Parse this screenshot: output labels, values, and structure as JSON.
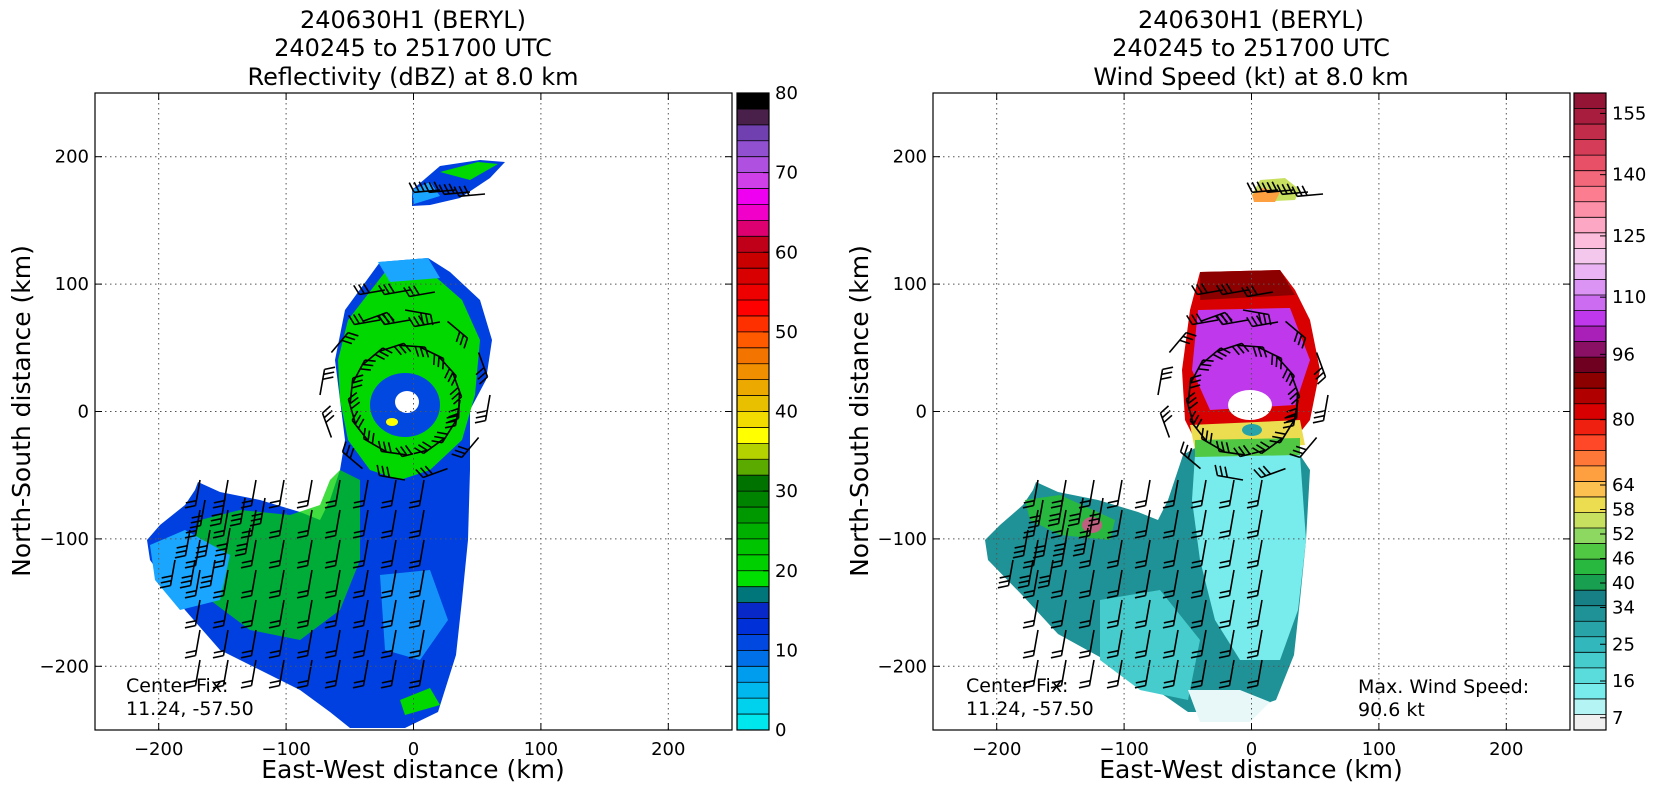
{
  "chart_data": [
    {
      "type": "heatmap",
      "title_lines": [
        "240630H1 (BERYL)",
        "240245 to 251700 UTC",
        "Reflectivity (dBZ) at 8.0 km"
      ],
      "xlabel": "East-West distance (km)",
      "ylabel": "North-South distance (km)",
      "xlim": [
        -250,
        250
      ],
      "ylim": [
        -250,
        250
      ],
      "xticks": [
        -200,
        -100,
        0,
        100,
        200
      ],
      "yticks": [
        -200,
        -100,
        0,
        100,
        200
      ],
      "xtick_labels": [
        "−200",
        "−100",
        "0",
        "100",
        "200"
      ],
      "ytick_labels": [
        "−200",
        "−100",
        "0",
        "100",
        "200"
      ],
      "grid": true,
      "center_fix_label": "Center Fix:",
      "center_fix_value": "11.24, -57.50",
      "colorbar": {
        "min": 0,
        "max": 80,
        "ticks": [
          0,
          10,
          20,
          30,
          40,
          50,
          60,
          70,
          80
        ],
        "tick_labels": [
          "0",
          "10",
          "20",
          "30",
          "40",
          "50",
          "60",
          "70",
          "80"
        ],
        "colors": [
          "#00e8ee",
          "#00d2ee",
          "#00b8ee",
          "#009cee",
          "#0070e8",
          "#0048e0",
          "#0030d8",
          "#0828c8",
          "#00767a",
          "#00e000",
          "#00d000",
          "#00c400",
          "#00b000",
          "#009800",
          "#008400",
          "#007200",
          "#5aaa00",
          "#b4d200",
          "#ffff00",
          "#f2dc00",
          "#e8c000",
          "#ecaa00",
          "#f09000",
          "#f47400",
          "#ff5a00",
          "#ff3000",
          "#ff0000",
          "#ee0000",
          "#d80000",
          "#c80000",
          "#c00018",
          "#dc0070",
          "#f000c8",
          "#f000f0",
          "#d040e8",
          "#b050e0",
          "#9050d0",
          "#7040b0",
          "#48204a",
          "#000000"
        ]
      },
      "field_colors": {
        "low": "#0040e0",
        "mid": "#1aa6ff",
        "high": "#00d800",
        "strong": "#ffff00"
      },
      "barb_color": "#000000"
    },
    {
      "type": "heatmap",
      "title_lines": [
        "240630H1 (BERYL)",
        "240245 to 251700 UTC",
        "Wind Speed (kt) at 8.0 km"
      ],
      "xlabel": "East-West distance (km)",
      "ylabel": "North-South distance (km)",
      "xlim": [
        -250,
        250
      ],
      "ylim": [
        -250,
        250
      ],
      "xticks": [
        -200,
        -100,
        0,
        100,
        200
      ],
      "yticks": [
        -200,
        -100,
        0,
        100,
        200
      ],
      "xtick_labels": [
        "−200",
        "−100",
        "0",
        "100",
        "200"
      ],
      "ytick_labels": [
        "−200",
        "−100",
        "0",
        "100",
        "200"
      ],
      "grid": true,
      "center_fix_label": "Center Fix:",
      "center_fix_value": "11.24, -57.50",
      "max_wind_label": "Max. Wind Speed:",
      "max_wind_value": "90.6 kt",
      "colorbar": {
        "min": 4,
        "max": 160,
        "ticks": [
          7,
          16,
          25,
          34,
          40,
          46,
          52,
          58,
          64,
          80,
          96,
          110,
          125,
          140,
          155
        ],
        "tick_labels": [
          "7",
          "16",
          "25",
          "34",
          "40",
          "46",
          "52",
          "58",
          "64",
          "80",
          "96",
          "110",
          "125",
          "140",
          "155"
        ],
        "colors": [
          "#f0f0f0",
          "#b4f4f4",
          "#78ecec",
          "#5adcdc",
          "#46cccc",
          "#32b8bc",
          "#28a4a8",
          "#1e9296",
          "#168086",
          "#18a050",
          "#28b840",
          "#50c844",
          "#8cd860",
          "#c8e060",
          "#ecdc50",
          "#fcc050",
          "#ffa040",
          "#ff7838",
          "#ff4828",
          "#f02010",
          "#d80000",
          "#b00000",
          "#8c0000",
          "#700020",
          "#8a1066",
          "#a820b8",
          "#c038ec",
          "#cc6cf0",
          "#dc94f4",
          "#eab4f4",
          "#f4c8ec",
          "#fcbcdc",
          "#fca8c4",
          "#fc90a8",
          "#fc7c90",
          "#f4687c",
          "#e85068",
          "#d43c58",
          "#c02c4a",
          "#a81c3e",
          "#941436"
        ]
      },
      "field_colors": {
        "low": "#1e9296",
        "mid": "#78ecec",
        "high": "#d80000",
        "strong": "#c038ec"
      },
      "barb_color": "#000000"
    }
  ]
}
